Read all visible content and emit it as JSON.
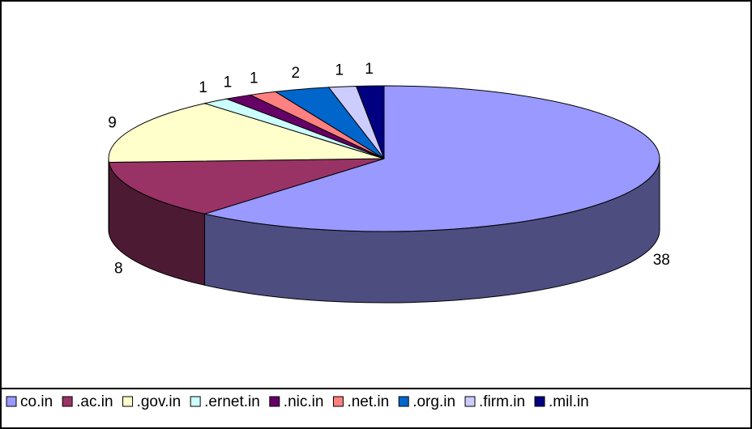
{
  "chart_data": {
    "type": "pie",
    "categories": [
      "co.in",
      ".ac.in",
      ".gov.in",
      ".ernet.in",
      ".nic.in",
      ".net.in",
      ".org.in",
      ".firm.in",
      ".mil.in"
    ],
    "values": [
      38,
      8,
      9,
      1,
      1,
      1,
      2,
      1,
      1
    ],
    "colors": [
      "#9999ff",
      "#993366",
      "#ffffcc",
      "#ccffff",
      "#660066",
      "#ff8080",
      "#0066cc",
      "#ccccff",
      "#000080"
    ],
    "legend": "bottom"
  }
}
